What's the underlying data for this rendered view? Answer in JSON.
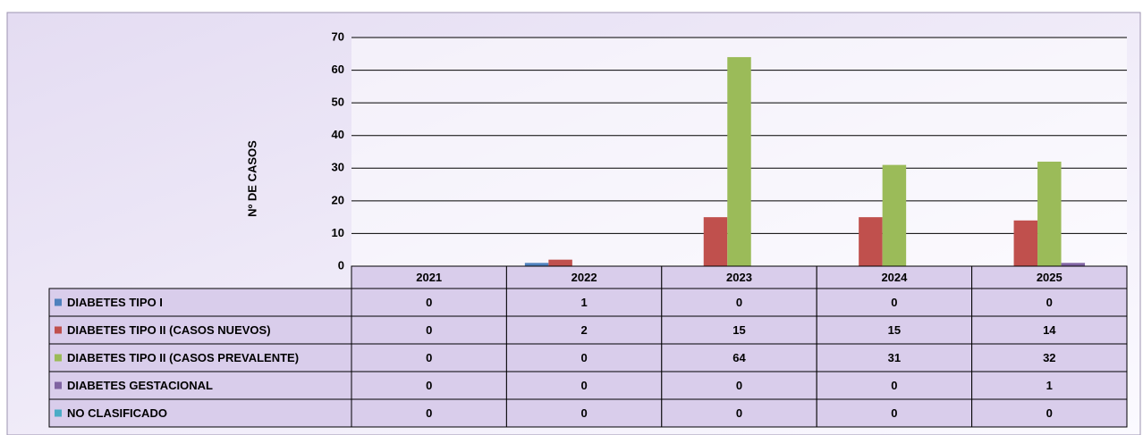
{
  "chart_data": {
    "type": "bar",
    "y_axis_label": "Nº DE CASOS",
    "categories": [
      "2021",
      "2022",
      "2023",
      "2024",
      "2025"
    ],
    "series": [
      {
        "name": "DIABETES TIPO I",
        "color": "#4f81bd",
        "values": [
          0,
          1,
          0,
          0,
          0
        ]
      },
      {
        "name": "DIABETES TIPO II (CASOS NUEVOS)",
        "color": "#c0504d",
        "values": [
          0,
          2,
          15,
          15,
          14
        ]
      },
      {
        "name": "DIABETES TIPO II (CASOS PREVALENTE)",
        "color": "#9bbb59",
        "values": [
          0,
          0,
          64,
          31,
          32
        ]
      },
      {
        "name": "DIABETES GESTACIONAL",
        "color": "#8064a2",
        "values": [
          0,
          0,
          0,
          0,
          1
        ]
      },
      {
        "name": "NO CLASIFICADO",
        "color": "#4bacc6",
        "values": [
          0,
          0,
          0,
          0,
          0
        ]
      }
    ],
    "ylim": [
      0,
      70
    ],
    "yticks": [
      0,
      10,
      20,
      30,
      40,
      50,
      60,
      70
    ],
    "grid": true
  }
}
